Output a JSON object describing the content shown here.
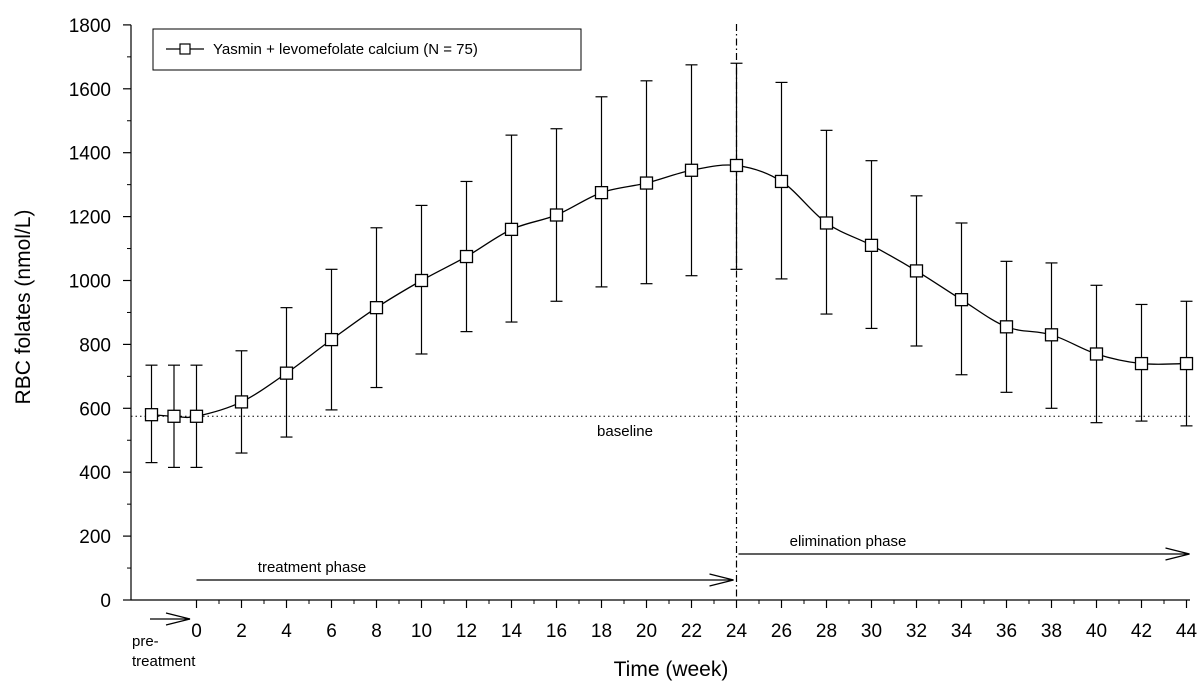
{
  "chart_data": {
    "type": "line",
    "xlabel": "Time (week)",
    "ylabel": "RBC folates (nmol/L)",
    "xlim": [
      -4,
      44
    ],
    "ylim": [
      0,
      1800
    ],
    "x_ticks": [
      0,
      2,
      4,
      6,
      8,
      10,
      12,
      14,
      16,
      18,
      20,
      22,
      24,
      26,
      28,
      30,
      32,
      34,
      36,
      38,
      40,
      42,
      44
    ],
    "y_ticks": [
      0,
      200,
      400,
      600,
      800,
      1000,
      1200,
      1400,
      1600,
      1800
    ],
    "grid": false,
    "legend_position": "top-left",
    "series": [
      {
        "name": "Yasmin + levomefolate calcium (N = 75)",
        "marker": "open-square",
        "x": [
          -2,
          -1,
          0,
          2,
          4,
          6,
          8,
          10,
          12,
          14,
          16,
          18,
          20,
          22,
          24,
          26,
          28,
          30,
          32,
          34,
          36,
          38,
          40,
          42,
          44
        ],
        "y": [
          580,
          575,
          575,
          620,
          710,
          815,
          915,
          1000,
          1075,
          1160,
          1205,
          1275,
          1305,
          1345,
          1360,
          1310,
          1180,
          1110,
          1030,
          940,
          855,
          830,
          770,
          740,
          740
        ],
        "err_low": [
          430,
          415,
          415,
          460,
          510,
          595,
          665,
          770,
          840,
          870,
          935,
          980,
          990,
          1015,
          1035,
          1005,
          895,
          850,
          795,
          705,
          650,
          600,
          555,
          560,
          545
        ],
        "err_high": [
          735,
          735,
          735,
          780,
          915,
          1035,
          1165,
          1235,
          1310,
          1455,
          1475,
          1575,
          1625,
          1675,
          1680,
          1620,
          1470,
          1375,
          1265,
          1180,
          1060,
          1055,
          985,
          925,
          935
        ]
      }
    ],
    "reference_lines": [
      {
        "orientation": "horizontal",
        "value": 575,
        "style": "dotted",
        "label": "baseline"
      },
      {
        "orientation": "vertical",
        "value": 24,
        "style": "dash-dot"
      }
    ],
    "annotations": {
      "treatment": "treatment phase",
      "elimination": "elimination phase",
      "pre_line1": "pre-",
      "pre_line2": "treatment"
    }
  }
}
